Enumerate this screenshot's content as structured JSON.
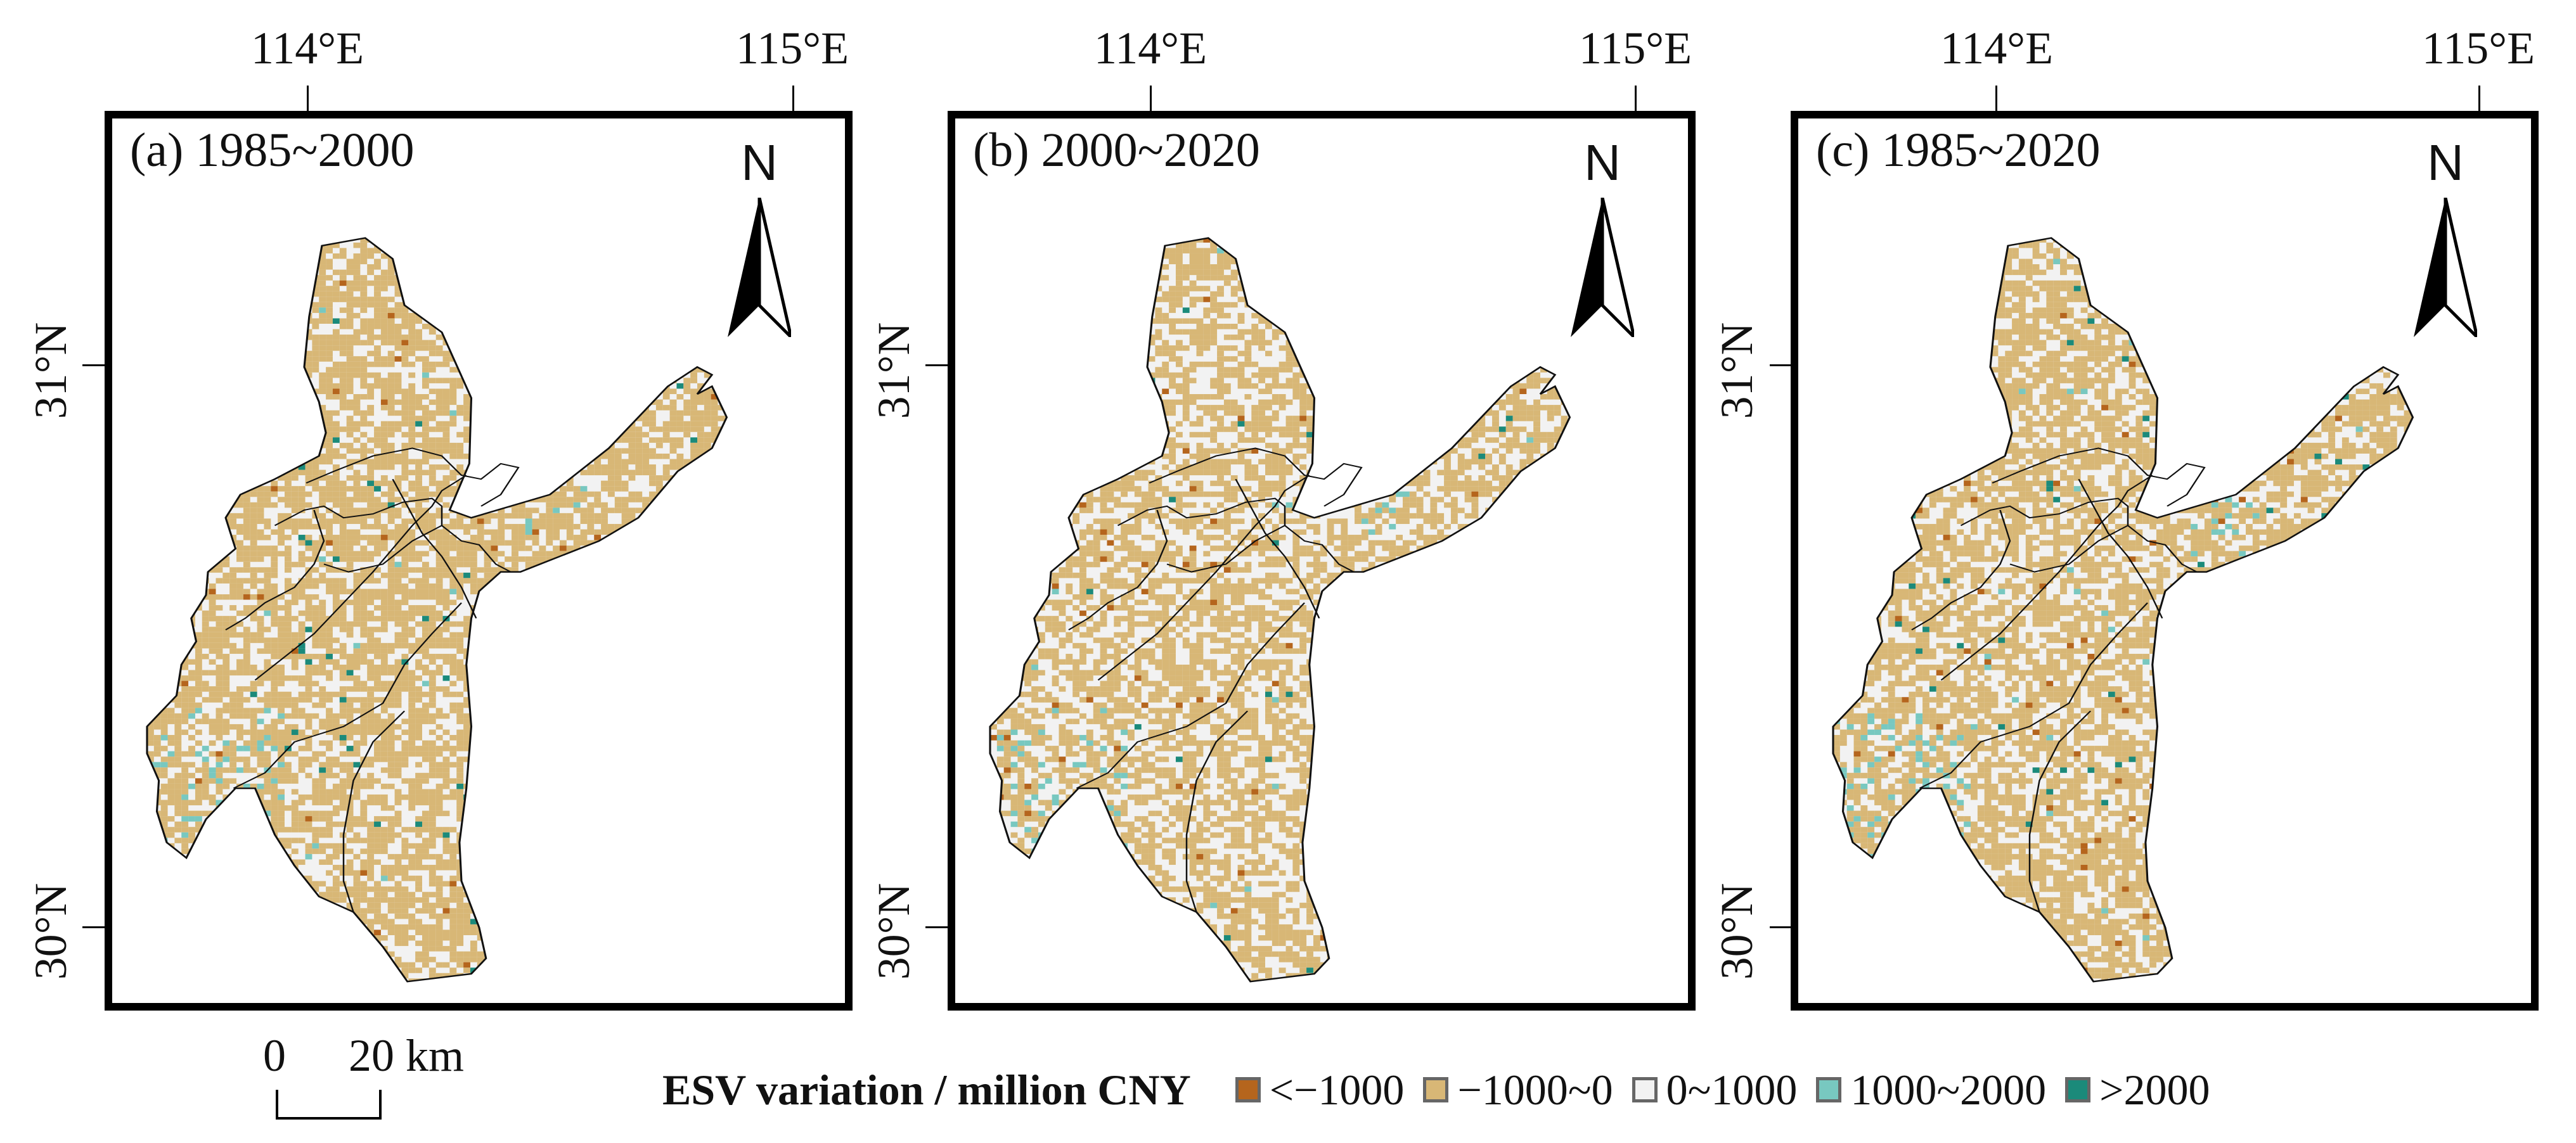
{
  "panels": [
    {
      "id": "a",
      "title": "(a) 1985~2000",
      "fill_share": 0.7,
      "dark_share": 0.006,
      "light_teal_share": 0.01,
      "dark_teal_share": 0.002,
      "seed": 11
    },
    {
      "id": "b",
      "title": "(b) 2000~2020",
      "fill_share": 0.6,
      "dark_share": 0.012,
      "light_teal_share": 0.006,
      "dark_teal_share": 0.001,
      "seed": 29
    },
    {
      "id": "c",
      "title": "(c) 1985~2020",
      "fill_share": 0.66,
      "dark_share": 0.01,
      "light_teal_share": 0.012,
      "dark_teal_share": 0.002,
      "seed": 47
    }
  ],
  "axes": {
    "lon_labels": [
      "114°E",
      "115°E"
    ],
    "lat_labels": [
      "31°N",
      "30°N"
    ]
  },
  "north": {
    "letter": "N"
  },
  "scalebar": {
    "zero": "0",
    "twenty": "20 km"
  },
  "legend": {
    "title": "ESV variation / million CNY",
    "items": [
      {
        "label": "<−1000",
        "color": "#b5651d"
      },
      {
        "label": "−1000~0",
        "color": "#d8b776"
      },
      {
        "label": "0~1000",
        "color": "#f2f2f2"
      },
      {
        "label": "1000~2000",
        "color": "#78c8c0"
      },
      {
        "label": ">2000",
        "color": "#1b8a7a"
      }
    ]
  }
}
